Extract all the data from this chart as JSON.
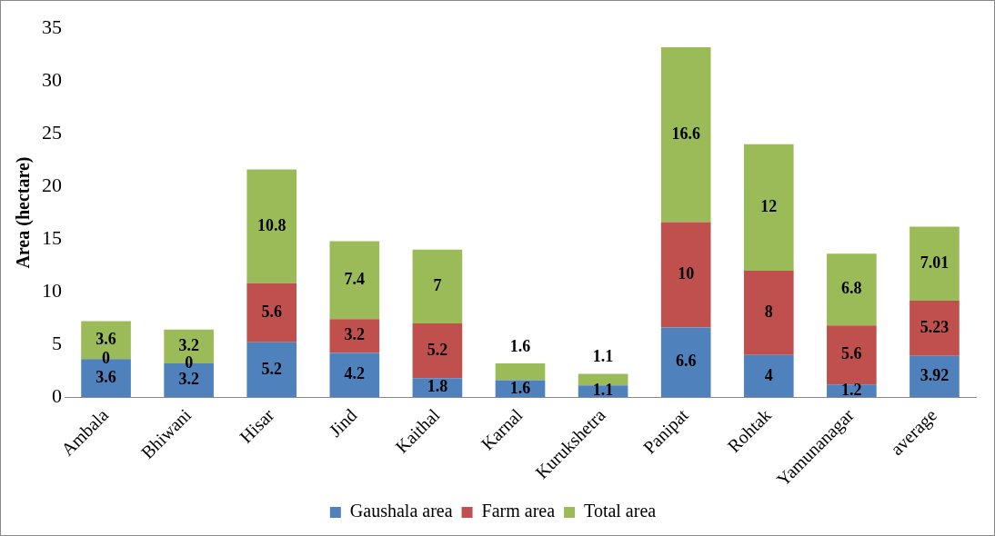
{
  "chart_data": {
    "type": "bar",
    "stacked": true,
    "ylabel": "Area (hectare)",
    "categories": [
      "Ambala",
      "Bhiwani",
      "Hisar",
      "Jind",
      "Kaithal",
      "Karnal",
      "Kurukshetra",
      "Panipat",
      "Rohtak",
      "Yamunanagar",
      "average"
    ],
    "series": [
      {
        "name": "Gaushala area",
        "color": "#4f81bd",
        "values": [
          3.6,
          3.2,
          5.2,
          4.2,
          1.8,
          1.6,
          1.1,
          6.6,
          4,
          1.2,
          3.92
        ],
        "value_labels": [
          "3.6",
          "3.2",
          "5.2",
          "4.2",
          "1.8",
          "1.6",
          "1.1",
          "6.6",
          "4",
          "1.2",
          "3.92"
        ]
      },
      {
        "name": "Farm area",
        "color": "#c0504d",
        "values": [
          0,
          0,
          5.6,
          3.2,
          5.2,
          0,
          0,
          10,
          8,
          5.6,
          5.23
        ],
        "value_labels": [
          "0",
          "0",
          "5.6",
          "3.2",
          "5.2",
          null,
          null,
          "10",
          "8",
          "5.6",
          "5.23"
        ]
      },
      {
        "name": "Total area",
        "color": "#9bbb59",
        "values": [
          3.6,
          3.2,
          10.8,
          7.4,
          7,
          1.6,
          1.1,
          16.6,
          12,
          6.8,
          7.01
        ],
        "value_labels": [
          "3.6",
          "3.2",
          "10.8",
          "7.4",
          "7",
          "1.6",
          "1.1",
          "16.6",
          "12",
          "6.8",
          "7.01"
        ]
      }
    ],
    "ylim": [
      0,
      35
    ],
    "yticks": [
      0,
      5,
      10,
      15,
      20,
      25,
      30,
      35
    ],
    "grid": false,
    "legend": "bottom"
  }
}
